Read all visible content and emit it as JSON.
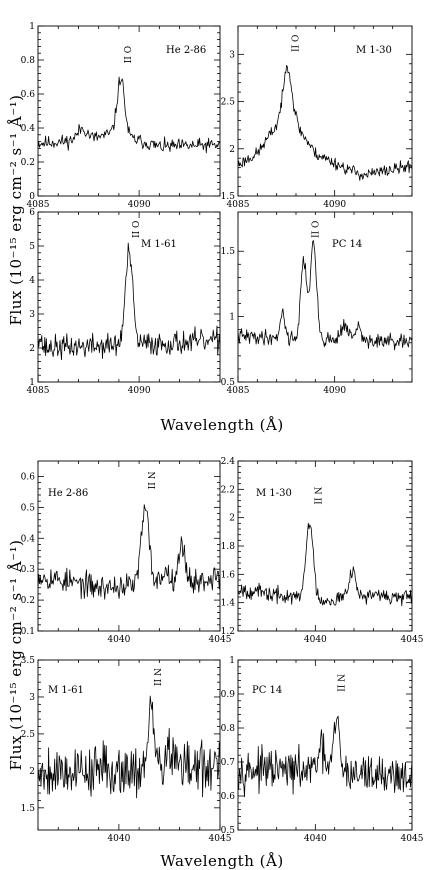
{
  "figure": {
    "x_title": "Wavelength (Å)",
    "y_title": "Flux (10⁻¹⁵ erg cm⁻² s⁻¹ Å⁻¹)"
  },
  "chart_data": [
    {
      "type": "line",
      "name": "He 2-86",
      "line_label": "O II",
      "xlim": [
        4085,
        4094
      ],
      "ylim": [
        0,
        1
      ],
      "xticks": [
        4085,
        4090
      ],
      "xtick_labels": [
        "4085",
        "4090"
      ],
      "yticks": [
        0,
        0.2,
        0.4,
        0.6,
        0.8,
        1
      ],
      "ytick_labels": [
        "0",
        "0.2",
        "0.4",
        "0.6",
        "0.8",
        "1"
      ],
      "continuum": [
        [
          4085,
          0.31
        ],
        [
          4087.5,
          0.33
        ],
        [
          4088.7,
          0.37
        ],
        [
          4091,
          0.29
        ],
        [
          4094,
          0.3
        ]
      ],
      "peaks": [
        {
          "x": 4089.1,
          "h": 0.34,
          "w": 0.18
        },
        {
          "x": 4087.2,
          "h": 0.07,
          "w": 0.25
        }
      ],
      "noise": 0.025,
      "seed": 11,
      "label_x": 4089.1
    },
    {
      "type": "line",
      "name": "M 1-30",
      "line_label": "O II",
      "xlim": [
        4085,
        4094
      ],
      "ylim": [
        1.5,
        3.3
      ],
      "xticks": [
        4085,
        4090
      ],
      "xtick_labels": [
        "4085",
        "4090"
      ],
      "yticks": [
        1.5,
        2,
        2.5,
        3
      ],
      "ytick_labels": [
        "1.5",
        "2",
        "2.5",
        "3"
      ],
      "continuum": [
        [
          4085,
          1.83
        ],
        [
          4086,
          1.95
        ],
        [
          4087,
          2.25
        ],
        [
          4087.5,
          2.7
        ],
        [
          4088.2,
          2.2
        ],
        [
          4089,
          1.95
        ],
        [
          4090.5,
          1.8
        ],
        [
          4091.5,
          1.72
        ],
        [
          4094,
          1.82
        ]
      ],
      "peaks": [
        {
          "x": 4087.6,
          "h": 0.25,
          "w": 0.15
        }
      ],
      "noise": 0.04,
      "seed": 23,
      "label_x": 4087.6
    },
    {
      "type": "line",
      "name": "M 1-61",
      "line_label": "O II",
      "xlim": [
        4085,
        4094
      ],
      "ylim": [
        1,
        6
      ],
      "xticks": [
        4085,
        4090
      ],
      "xtick_labels": [
        "4085",
        "4090"
      ],
      "yticks": [
        1,
        2,
        3,
        4,
        5,
        6
      ],
      "ytick_labels": [
        "1",
        "2",
        "3",
        "4",
        "5",
        "6"
      ],
      "continuum": [
        [
          4085,
          2.5
        ],
        [
          4085.3,
          2.0
        ],
        [
          4094,
          2.2
        ]
      ],
      "peaks": [
        {
          "x": 4089.5,
          "h": 2.7,
          "w": 0.18
        }
      ],
      "noise": 0.22,
      "seed": 37,
      "label_x": 4089.5
    },
    {
      "type": "line",
      "name": "PC 14",
      "line_label": "O II",
      "xlim": [
        4085,
        4094
      ],
      "ylim": [
        0.5,
        1.8
      ],
      "xticks": [
        4085,
        4090
      ],
      "xtick_labels": [
        "4085",
        "4090"
      ],
      "yticks": [
        0.5,
        1,
        1.5
      ],
      "ytick_labels": [
        "0.5",
        "1",
        "1.5"
      ],
      "continuum": [
        [
          4085,
          0.85
        ],
        [
          4094,
          0.8
        ]
      ],
      "peaks": [
        {
          "x": 4088.4,
          "h": 0.6,
          "w": 0.15
        },
        {
          "x": 4088.9,
          "h": 0.72,
          "w": 0.16
        },
        {
          "x": 4087.3,
          "h": 0.2,
          "w": 0.12
        },
        {
          "x": 4090.5,
          "h": 0.12,
          "w": 0.18
        },
        {
          "x": 4091.2,
          "h": 0.1,
          "w": 0.15
        }
      ],
      "noise": 0.035,
      "seed": 41,
      "label_x": 4088.65
    },
    {
      "type": "line",
      "name": "He 2-86",
      "line_label": "N II",
      "xlim": [
        4036,
        4045
      ],
      "ylim": [
        0.1,
        0.65
      ],
      "xticks": [
        4040,
        4045
      ],
      "xtick_labels": [
        "4040",
        "4045"
      ],
      "yticks": [
        0.1,
        0.2,
        0.3,
        0.4,
        0.5,
        0.6
      ],
      "ytick_labels": [
        "0.1",
        "0.2",
        "0.3",
        "0.4",
        "0.5",
        "0.6"
      ],
      "continuum": [
        [
          4036,
          0.28
        ],
        [
          4039,
          0.24
        ],
        [
          4044,
          0.26
        ],
        [
          4045,
          0.28
        ]
      ],
      "peaks": [
        {
          "x": 4041.3,
          "h": 0.24,
          "w": 0.2
        },
        {
          "x": 4043.1,
          "h": 0.11,
          "w": 0.2
        },
        {
          "x": 4042.3,
          "h": 0.04,
          "w": 0.2
        }
      ],
      "noise": 0.025,
      "seed": 53,
      "label_x": 4041.3
    },
    {
      "type": "line",
      "name": "M 1-30",
      "line_label": "N II",
      "xlim": [
        4036,
        4045
      ],
      "ylim": [
        1.2,
        2.4
      ],
      "xticks": [
        4040,
        4045
      ],
      "xtick_labels": [
        "4040",
        "4045"
      ],
      "yticks": [
        1.2,
        1.4,
        1.6,
        1.8,
        2,
        2.2,
        2.4
      ],
      "ytick_labels": [
        "1.2",
        "1.4",
        "1.6",
        "1.8",
        "2",
        "2.2",
        "2.4"
      ],
      "continuum": [
        [
          4036,
          1.5
        ],
        [
          4038,
          1.45
        ],
        [
          4040.5,
          1.42
        ],
        [
          4043,
          1.45
        ],
        [
          4045,
          1.43
        ]
      ],
      "peaks": [
        {
          "x": 4039.7,
          "h": 0.55,
          "w": 0.18
        },
        {
          "x": 4041.9,
          "h": 0.2,
          "w": 0.18
        }
      ],
      "noise": 0.035,
      "seed": 67,
      "label_x": 4039.8
    },
    {
      "type": "line",
      "name": "M 1-61",
      "line_label": "N II",
      "xlim": [
        4036,
        4045
      ],
      "ylim": [
        1.2,
        3.5
      ],
      "xticks": [
        4040,
        4045
      ],
      "xtick_labels": [
        "4040",
        "4045"
      ],
      "yticks": [
        1.5,
        2,
        2.5,
        3,
        3.5
      ],
      "ytick_labels": [
        "1.5",
        "2",
        "2.5",
        "3",
        "3.5"
      ],
      "continuum": [
        [
          4036,
          2.0
        ],
        [
          4045,
          2.05
        ]
      ],
      "peaks": [
        {
          "x": 4041.6,
          "h": 0.75,
          "w": 0.15
        },
        {
          "x": 4042.5,
          "h": 0.25,
          "w": 0.2
        }
      ],
      "noise": 0.22,
      "seed": 79,
      "label_x": 4041.6
    },
    {
      "type": "line",
      "name": "PC 14",
      "line_label": "N II",
      "xlim": [
        4036,
        4045
      ],
      "ylim": [
        0.5,
        1
      ],
      "xticks": [
        4040,
        4045
      ],
      "xtick_labels": [
        "4040",
        "4045"
      ],
      "yticks": [
        0.5,
        0.6,
        0.7,
        0.8,
        0.9,
        1
      ],
      "ytick_labels": [
        "0.5",
        "0.6",
        "0.7",
        "0.8",
        "0.9",
        "1"
      ],
      "continuum": [
        [
          4036,
          0.68
        ],
        [
          4045,
          0.66
        ]
      ],
      "peaks": [
        {
          "x": 4041.1,
          "h": 0.15,
          "w": 0.15
        },
        {
          "x": 4040.3,
          "h": 0.06,
          "w": 0.2
        }
      ],
      "noise": 0.035,
      "seed": 97,
      "label_x": 4041.0
    }
  ]
}
